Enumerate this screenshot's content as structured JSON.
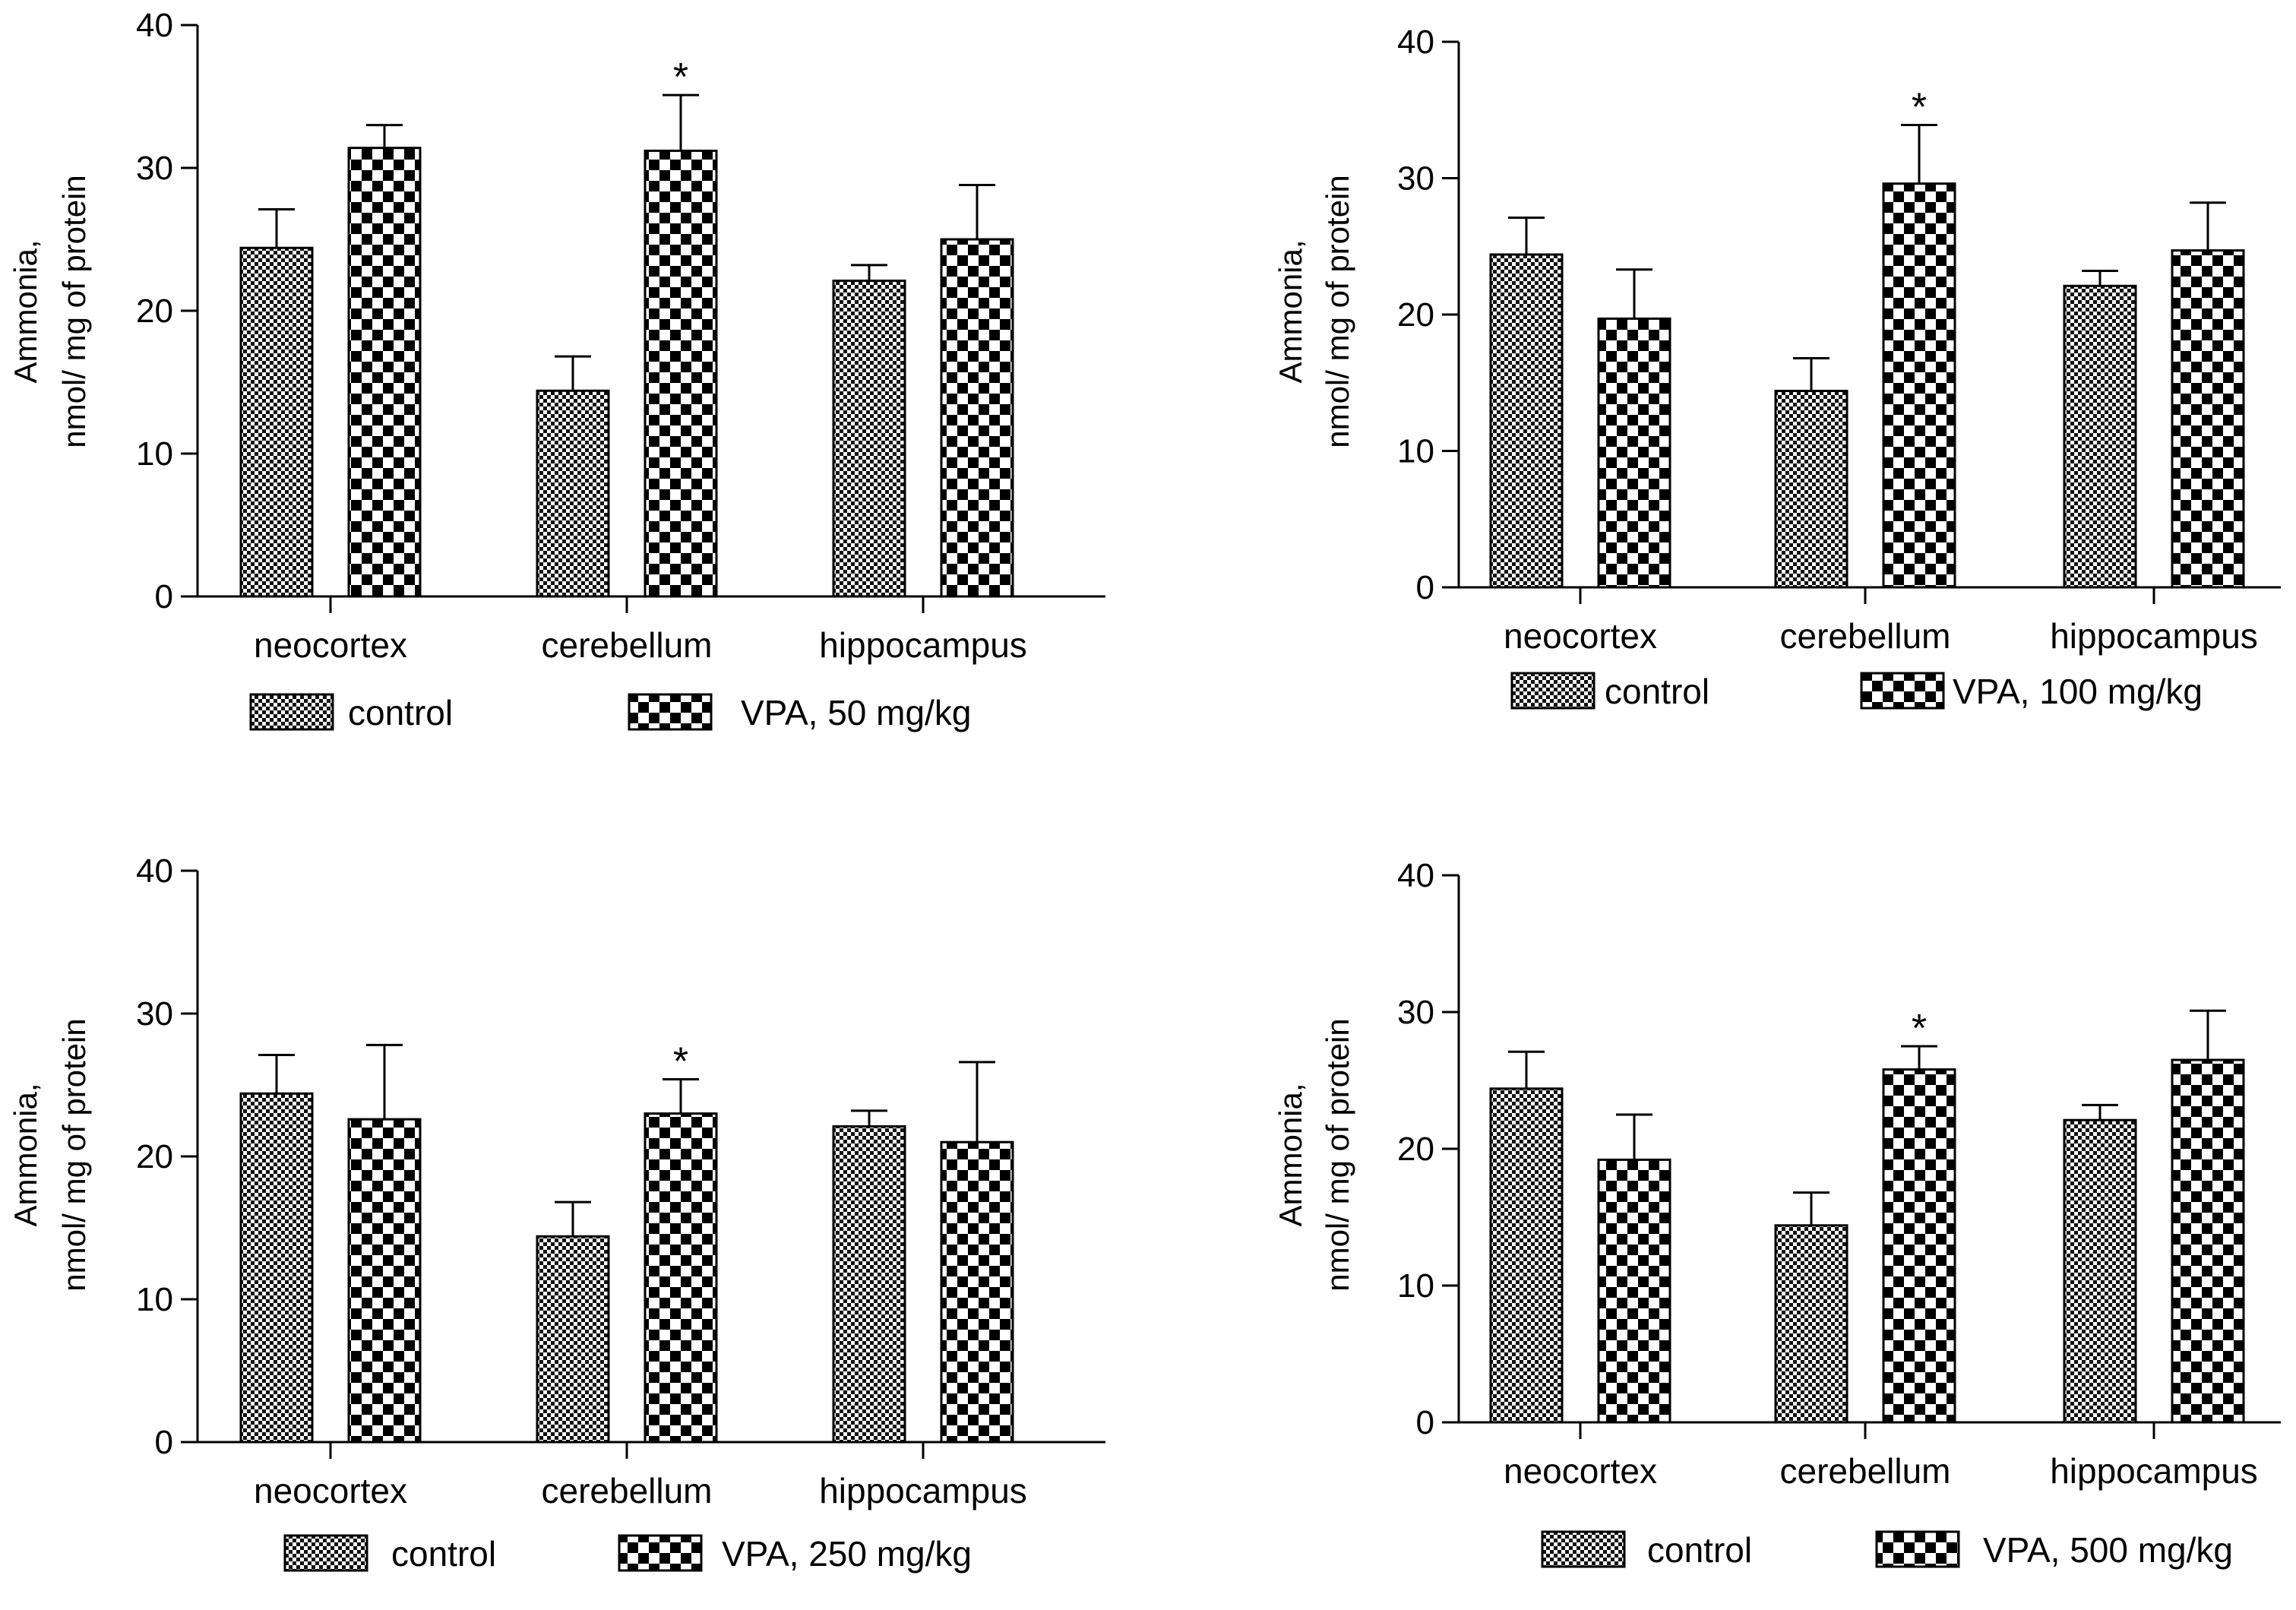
{
  "chart_data": [
    {
      "type": "bar",
      "categories": [
        "neocortex",
        "cerebellum",
        "hippocampus"
      ],
      "series": [
        {
          "name": "control",
          "values": [
            24.4,
            14.4,
            22.1
          ],
          "errors": [
            2.7,
            2.4,
            1.1
          ]
        },
        {
          "name": "VPA, 50 mg/kg",
          "values": [
            31.4,
            31.2,
            25.0
          ],
          "errors": [
            1.6,
            3.9,
            3.8
          ]
        }
      ],
      "significance": [
        {
          "category": "cerebellum",
          "series": 1,
          "label": "*"
        }
      ],
      "ylabel": "Ammonia,\nnmol/ mg of protein",
      "ylabel_lines": [
        "Ammonia,",
        "nmol/ mg of protein"
      ],
      "ylim": [
        0,
        40
      ],
      "yticks": [
        "0",
        "10",
        "20",
        "30",
        "40"
      ],
      "legend_position": "bottom"
    },
    {
      "type": "bar",
      "categories": [
        "neocortex",
        "cerebellum",
        "hippocampus"
      ],
      "series": [
        {
          "name": "control",
          "values": [
            24.4,
            14.4,
            22.1
          ],
          "errors": [
            2.7,
            2.4,
            1.1
          ]
        },
        {
          "name": "VPA, 100 mg/kg",
          "values": [
            19.7,
            29.6,
            24.7
          ],
          "errors": [
            3.6,
            4.3,
            3.5
          ]
        }
      ],
      "significance": [
        {
          "category": "cerebellum",
          "series": 1,
          "label": "*"
        }
      ],
      "ylabel": "Ammonia,\nnmol/ mg of protein",
      "ylabel_lines": [
        "Ammonia,",
        "nmol/ mg of protein"
      ],
      "ylim": [
        0,
        40
      ],
      "yticks": [
        "0",
        "10",
        "20",
        "30",
        "40"
      ],
      "legend_position": "bottom"
    },
    {
      "type": "bar",
      "categories": [
        "neocortex",
        "cerebellum",
        "hippocampus"
      ],
      "series": [
        {
          "name": "control",
          "values": [
            24.4,
            14.4,
            22.1
          ],
          "errors": [
            2.7,
            2.4,
            1.1
          ]
        },
        {
          "name": "VPA, 250 mg/kg",
          "values": [
            22.6,
            23.0,
            21.0
          ],
          "errors": [
            5.2,
            2.4,
            5.6
          ]
        }
      ],
      "significance": [
        {
          "category": "cerebellum",
          "series": 1,
          "label": "*"
        }
      ],
      "ylabel": "Ammonia,\nnmol/ mg of protein",
      "ylabel_lines": [
        "Ammonia,",
        "nmol/ mg of protein"
      ],
      "ylim": [
        0,
        40
      ],
      "yticks": [
        "0",
        "10",
        "20",
        "30",
        "40"
      ],
      "legend_position": "bottom"
    },
    {
      "type": "bar",
      "categories": [
        "neocortex",
        "cerebellum",
        "hippocampus"
      ],
      "series": [
        {
          "name": "control",
          "values": [
            24.4,
            14.4,
            22.1
          ],
          "errors": [
            2.7,
            2.4,
            1.1
          ]
        },
        {
          "name": "VPA, 500 mg/kg",
          "values": [
            19.2,
            25.8,
            26.5
          ],
          "errors": [
            3.3,
            1.7,
            3.6
          ]
        }
      ],
      "significance": [
        {
          "category": "cerebellum",
          "series": 1,
          "label": "*"
        }
      ],
      "ylabel": "Ammonia,\nnmol/ mg of protein",
      "ylabel_lines": [
        "Ammonia,",
        "nmol/ mg of protein"
      ],
      "ylim": [
        0,
        40
      ],
      "yticks": [
        "0",
        "10",
        "20",
        "30",
        "40"
      ],
      "legend_position": "bottom"
    }
  ]
}
